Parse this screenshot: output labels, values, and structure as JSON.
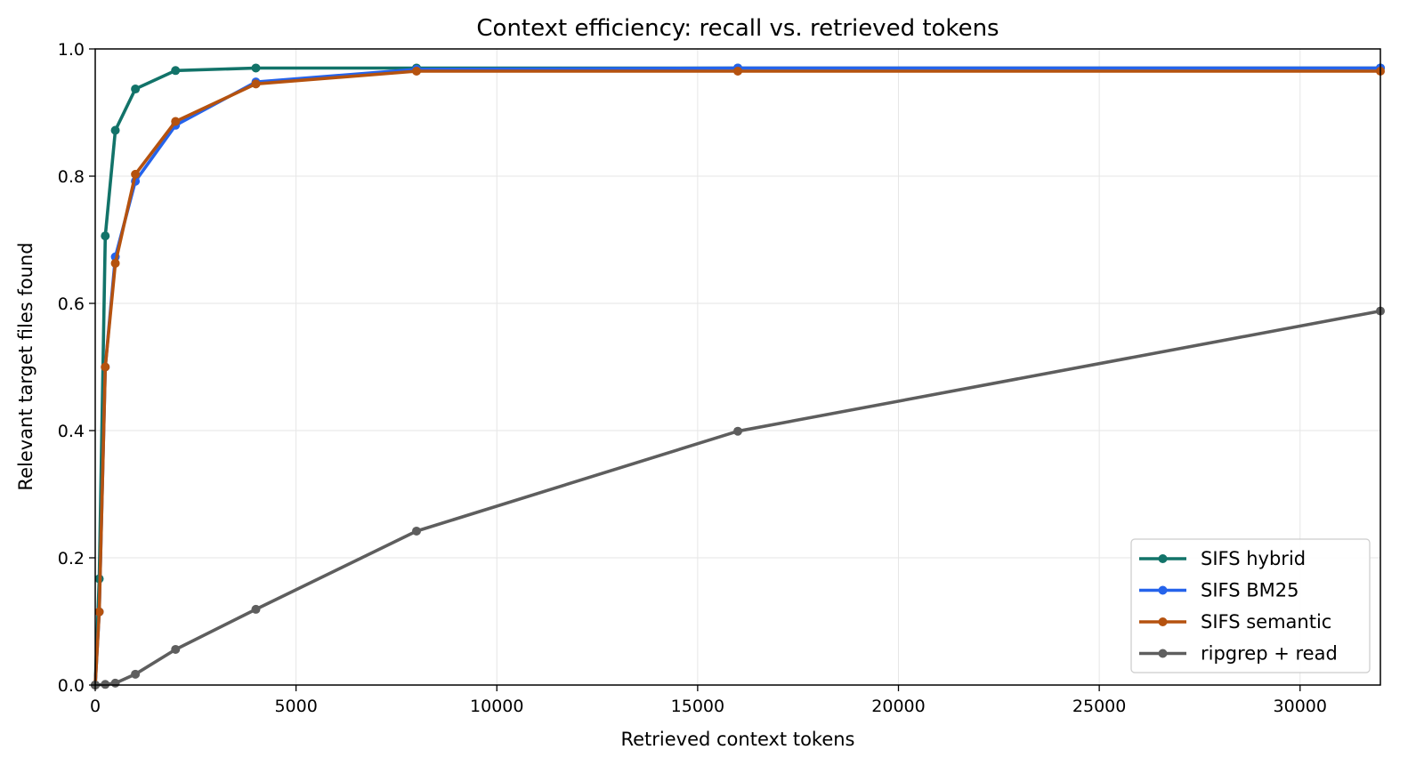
{
  "chart_data": {
    "type": "line",
    "title": "Context efficiency: recall vs. retrieved tokens",
    "xlabel": "Retrieved context tokens",
    "ylabel": "Relevant target files found",
    "xlim": [
      0,
      32000
    ],
    "ylim": [
      0.0,
      1.0
    ],
    "xticks": [
      0,
      5000,
      10000,
      15000,
      20000,
      25000,
      30000
    ],
    "yticks": [
      0.0,
      0.2,
      0.4,
      0.6,
      0.8,
      1.0
    ],
    "xtick_labels": [
      "0",
      "5000",
      "10000",
      "15000",
      "20000",
      "25000",
      "30000"
    ],
    "ytick_labels": [
      "0.0",
      "0.2",
      "0.4",
      "0.6",
      "0.8",
      "1.0"
    ],
    "grid": true,
    "legend_position": "bottom-right",
    "series": [
      {
        "name": "SIFS hybrid",
        "color": "#127369",
        "x": [
          0,
          100,
          250,
          500,
          1000,
          2000,
          4000,
          8000,
          16000,
          32000
        ],
        "y": [
          0.0,
          0.167,
          0.706,
          0.872,
          0.937,
          0.966,
          0.97,
          0.97,
          0.97,
          0.97
        ]
      },
      {
        "name": "SIFS BM25",
        "color": "#2563eb",
        "x": [
          0,
          100,
          250,
          500,
          1000,
          2000,
          4000,
          8000,
          16000,
          32000
        ],
        "y": [
          0.0,
          0.115,
          0.5,
          0.673,
          0.792,
          0.88,
          0.948,
          0.968,
          0.97,
          0.97
        ]
      },
      {
        "name": "SIFS semantic",
        "color": "#b5520f",
        "x": [
          0,
          100,
          250,
          500,
          1000,
          2000,
          4000,
          8000,
          16000,
          32000
        ],
        "y": [
          0.0,
          0.115,
          0.5,
          0.663,
          0.803,
          0.886,
          0.945,
          0.965,
          0.965,
          0.965
        ]
      },
      {
        "name": "ripgrep + read",
        "color": "#5e5e5e",
        "x": [
          0,
          250,
          500,
          1000,
          2000,
          4000,
          8000,
          16000,
          32000
        ],
        "y": [
          0.0,
          0.001,
          0.003,
          0.017,
          0.056,
          0.119,
          0.242,
          0.399,
          0.588
        ]
      }
    ]
  }
}
